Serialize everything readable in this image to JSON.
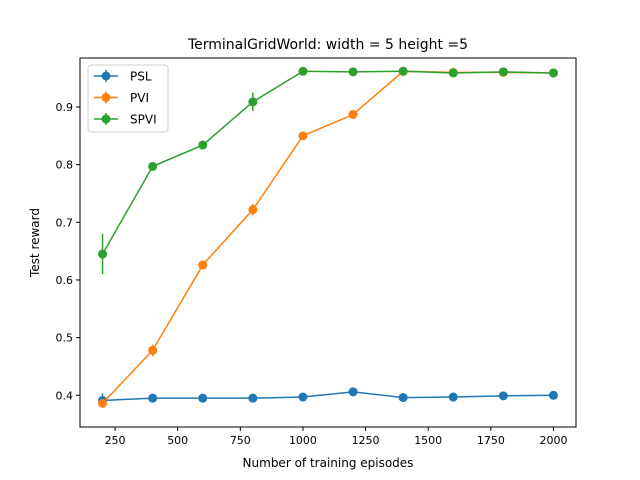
{
  "chart_data": {
    "type": "line",
    "title": "TerminalGridWorld: width = 5 height =5",
    "xlabel": "Number of training episodes",
    "ylabel": "Test reward",
    "xlim": [
      110,
      2090
    ],
    "ylim": [
      0.345,
      0.985
    ],
    "xticks": [
      250,
      500,
      750,
      1000,
      1250,
      1500,
      1750,
      2000
    ],
    "yticks": [
      0.4,
      0.5,
      0.6,
      0.7,
      0.8,
      0.9
    ],
    "legend": "upper-left",
    "grid": false,
    "x": [
      200,
      400,
      600,
      800,
      1000,
      1200,
      1400,
      1600,
      1800,
      2000
    ],
    "series": [
      {
        "name": "PSL",
        "color": "#1f77b4",
        "values": [
          0.391,
          0.395,
          0.395,
          0.395,
          0.397,
          0.406,
          0.396,
          0.397,
          0.399,
          0.4
        ],
        "errors": [
          0.012,
          0.003,
          0.002,
          0.002,
          0.002,
          0.003,
          0.002,
          0.002,
          0.002,
          0.002
        ]
      },
      {
        "name": "PVI",
        "color": "#ff7f0e",
        "values": [
          0.386,
          0.478,
          0.626,
          0.722,
          0.85,
          0.887,
          0.962,
          0.96,
          0.96,
          0.959
        ],
        "errors": [
          0.006,
          0.01,
          0.005,
          0.01,
          0.004,
          0.003,
          0.002,
          0.002,
          0.002,
          0.002
        ]
      },
      {
        "name": "SPVI",
        "color": "#2ca02c",
        "values": [
          0.645,
          0.797,
          0.834,
          0.909,
          0.962,
          0.961,
          0.962,
          0.959,
          0.961,
          0.959
        ],
        "errors": [
          0.035,
          0.003,
          0.003,
          0.016,
          0.002,
          0.002,
          0.003,
          0.002,
          0.002,
          0.002
        ]
      }
    ]
  }
}
